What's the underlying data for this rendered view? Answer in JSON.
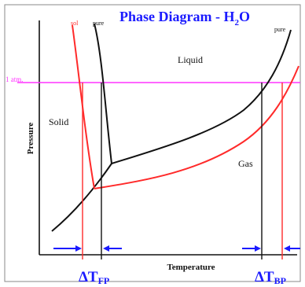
{
  "diagram": {
    "title_main": "Phase Diagram - H",
    "title_subscript": "2",
    "title_tail": "O",
    "region_labels": {
      "liquid": "Liquid",
      "solid": "Solid",
      "gas": "Gas"
    },
    "axis_labels": {
      "y": "Pressure",
      "x": "Temperature"
    },
    "pressure_reference": "1 atm.",
    "curve_labels": {
      "pure_left": "pure",
      "pure_right": "pure",
      "solution_left": "sol"
    },
    "delta_labels": {
      "freezing_symbol": "ΔT",
      "freezing_sub": "FP",
      "boiling_symbol": "ΔT",
      "boiling_sub": "BP"
    },
    "colors": {
      "pure_curve": "#111111",
      "solution_curve": "#ff2a2a",
      "reference_line": "#ff33ff",
      "title": "#1a1aff",
      "delta_labels": "#1a1aff",
      "arrows": "#1a1aff",
      "frame": "#8a8a8a"
    }
  }
}
